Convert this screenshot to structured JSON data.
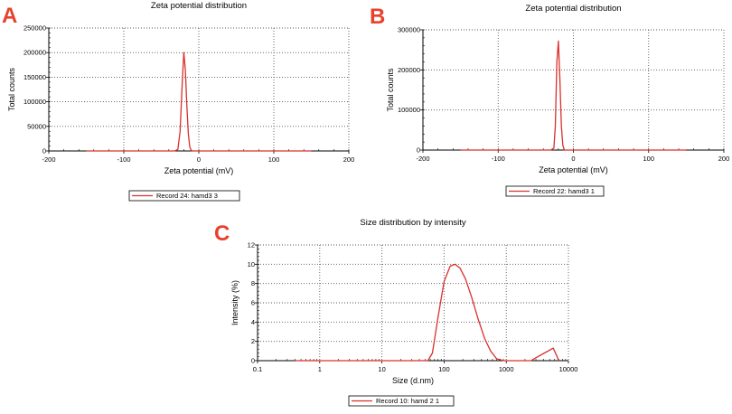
{
  "panels": {
    "a": {
      "letter": "A"
    },
    "b": {
      "letter": "B"
    },
    "c": {
      "letter": "C"
    }
  },
  "chart_data": [
    {
      "id": "A",
      "type": "line",
      "title": "Zeta potential distribution",
      "xlabel": "Zeta potential (mV)",
      "ylabel": "Total counts",
      "xlim": [
        -200,
        200
      ],
      "ylim": [
        0,
        250000
      ],
      "xticks": [
        -200,
        -100,
        0,
        100,
        200
      ],
      "yticks": [
        0,
        50000,
        100000,
        150000,
        200000,
        250000
      ],
      "x_scale": "linear",
      "grid": true,
      "line_color": "#d9312b",
      "series": [
        {
          "name": "Record 24: hamd3 3",
          "x": [
            -150,
            -40,
            -32,
            -28,
            -25,
            -22,
            -20,
            -18,
            -16,
            -14,
            -12,
            -10,
            -8,
            150
          ],
          "y": [
            0,
            0,
            0,
            3000,
            40000,
            140000,
            200000,
            165000,
            95000,
            35000,
            8000,
            1000,
            0,
            0
          ]
        }
      ],
      "legend_position": "bottom-center"
    },
    {
      "id": "B",
      "type": "line",
      "title": "Zeta potential distribution",
      "xlabel": "Zeta potential (mV)",
      "ylabel": "Total counts",
      "xlim": [
        -200,
        200
      ],
      "ylim": [
        0,
        300000
      ],
      "xticks": [
        -200,
        -100,
        0,
        100,
        200
      ],
      "yticks": [
        0,
        100000,
        200000,
        300000
      ],
      "x_scale": "linear",
      "grid": true,
      "line_color": "#d9312b",
      "series": [
        {
          "name": "Record 22: hamd3 1",
          "x": [
            -150,
            -30,
            -26,
            -24,
            -22,
            -20,
            -18,
            -16,
            -14,
            -12,
            150
          ],
          "y": [
            0,
            0,
            5000,
            60000,
            220000,
            272000,
            180000,
            60000,
            12000,
            0,
            0
          ]
        }
      ],
      "legend_position": "bottom-center"
    },
    {
      "id": "C",
      "type": "line",
      "title": "Size distribution by intensity",
      "xlabel": "Size (d.nm)",
      "ylabel": "Intensity (%)",
      "xlim": [
        0.1,
        10000
      ],
      "ylim": [
        0,
        12
      ],
      "xticks": [
        0.1,
        1,
        10,
        100,
        1000,
        10000
      ],
      "xtick_labels": [
        "0.1",
        "1",
        "10",
        "100",
        "1000",
        "10000"
      ],
      "yticks": [
        0,
        2,
        4,
        6,
        8,
        10,
        12
      ],
      "x_scale": "log",
      "grid": true,
      "line_color": "#d9312b",
      "series": [
        {
          "name": "Record 10: hamd 2 1",
          "x": [
            0.4,
            55,
            65,
            80,
            100,
            125,
            150,
            180,
            220,
            280,
            350,
            450,
            560,
            700,
            900,
            1100,
            2500,
            3000,
            4000,
            5000,
            5700,
            6500,
            7000
          ],
          "y": [
            0,
            0,
            0.8,
            4.5,
            8.2,
            9.8,
            10.0,
            9.6,
            8.5,
            6.5,
            4.4,
            2.3,
            1.0,
            0.2,
            0,
            0,
            0,
            0.3,
            0.75,
            1.1,
            1.3,
            0.5,
            0
          ]
        }
      ],
      "legend_position": "bottom-center"
    }
  ]
}
